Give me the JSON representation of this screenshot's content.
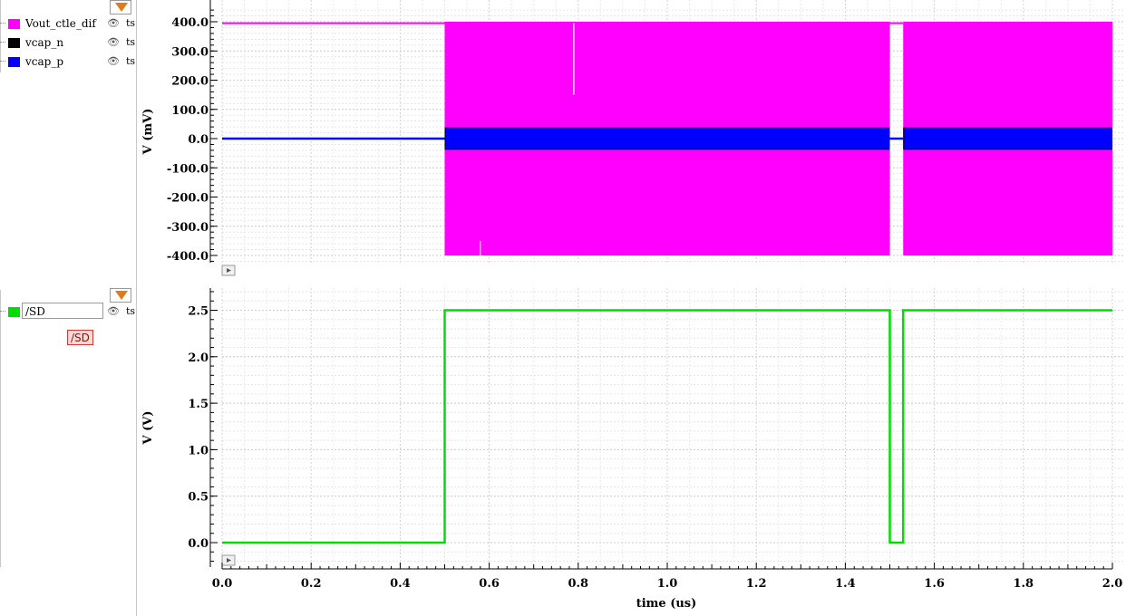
{
  "chart_data": [
    {
      "type": "line",
      "ylabel": "V (mV)",
      "ylim": [
        -430,
        440
      ],
      "yticks": [
        400,
        300,
        200,
        100,
        0,
        -100,
        -200,
        -300,
        -400
      ],
      "ytick_labels": [
        "400.0",
        "300.0",
        "200.0",
        "100.0",
        "0.0",
        "-100.0",
        "-200.0",
        "-300.0",
        "-400.0"
      ],
      "xlim": [
        0,
        2.0
      ],
      "grid": true,
      "series": [
        {
          "name": "Vout_ctle_dif",
          "color": "#ff00ff",
          "description_points": [
            [
              0,
              395
            ],
            [
              0.5,
              395
            ],
            [
              0.5,
              400
            ],
            [
              1.5,
              400
            ],
            [
              1.5,
              395
            ],
            [
              1.53,
              395
            ],
            [
              1.53,
              400
            ],
            [
              2.0,
              400
            ]
          ],
          "low": -400,
          "high": 400,
          "active_intervals": [
            [
              0.5,
              1.5
            ],
            [
              1.53,
              2.0
            ]
          ]
        },
        {
          "name": "vcap_n",
          "color": "#000000",
          "low": -38,
          "high": 38,
          "active_intervals": [
            [
              0.5,
              1.5
            ],
            [
              1.53,
              2.0
            ]
          ]
        },
        {
          "name": "vcap_p",
          "color": "#0000ff",
          "low": -36,
          "high": 36,
          "active_intervals": [
            [
              0.5,
              1.5
            ],
            [
              1.53,
              2.0
            ]
          ]
        }
      ]
    },
    {
      "type": "line",
      "ylabel": "V (V)",
      "ylim": [
        -0.2,
        2.75
      ],
      "yticks": [
        2.5,
        2.0,
        1.5,
        1.0,
        0.5,
        0.0
      ],
      "ytick_labels": [
        "2.5",
        "2.0",
        "1.5",
        "1.0",
        "0.5",
        "0.0"
      ],
      "xlabel": "time (us)",
      "xlim": [
        0,
        2.0
      ],
      "xticks": [
        0,
        0.2,
        0.4,
        0.6,
        0.8,
        1.0,
        1.2,
        1.4,
        1.6,
        1.8,
        2.0
      ],
      "xtick_labels": [
        "0.0",
        "0.2",
        "0.4",
        "0.6",
        "0.8",
        "1.0",
        "1.2",
        "1.4",
        "1.6",
        "1.8",
        "2.0"
      ],
      "grid": true,
      "series": [
        {
          "name": "/SD",
          "color": "#00dd00",
          "x": [
            0,
            0.5,
            0.5,
            1.5,
            1.5,
            1.53,
            1.53,
            2.0
          ],
          "y": [
            0,
            0,
            2.5,
            2.5,
            0,
            0,
            2.5,
            2.5
          ]
        }
      ]
    }
  ],
  "legend": {
    "top_traces": [
      {
        "name": "Vout_ctle_dif",
        "color": "#ff00ff",
        "ts": "ts"
      },
      {
        "name": "vcap_n",
        "color": "#000000",
        "ts": "ts"
      },
      {
        "name": "vcap_p",
        "color": "#0000ff",
        "ts": "ts"
      }
    ],
    "bottom_traces": [
      {
        "name": "/SD",
        "color": "#00dd00",
        "ts": "ts"
      }
    ],
    "sd_tag": "/SD"
  }
}
